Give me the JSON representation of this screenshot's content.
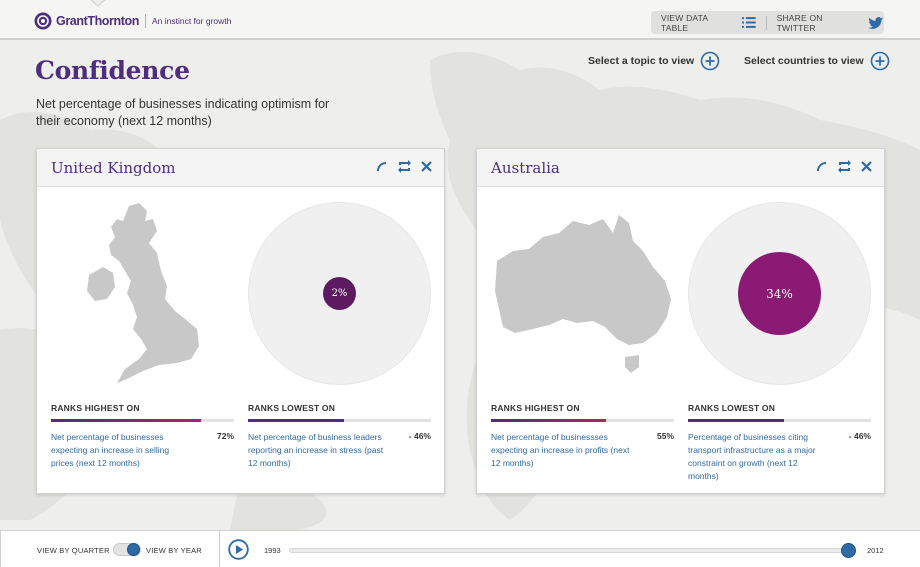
{
  "header": {
    "logo_name": "GrantThornton",
    "logo_tagline": "An instinct for growth",
    "view_data_table": "VIEW DATA TABLE",
    "share_twitter": "SHARE ON TWITTER"
  },
  "page": {
    "title": "Confidence",
    "subtitle": "Net percentage of businesses indicating optimism for their economy (next 12 months)",
    "select_topic": "Select a topic to view",
    "select_countries": "Select countries to view"
  },
  "cards": [
    {
      "country": "United Kingdom",
      "value_label": "2%",
      "value": 2,
      "highest": {
        "label": "RANKS HIGHEST ON",
        "description": "Net percentage of businesses expecting an increase in selling prices (next 12 months)",
        "value_label": "72%",
        "value": 72
      },
      "lowest": {
        "label": "RANKS LOWEST ON",
        "description": "Net percentage of business leaders reporting an increase in stress (past 12 months)",
        "value_label": "- 46%",
        "value": -46
      }
    },
    {
      "country": "Australia",
      "value_label": "34%",
      "value": 34,
      "highest": {
        "label": "RANKS HIGHEST ON",
        "description": "Net percentage of businessses expecting an increase in profits (next 12 months)",
        "value_label": "55%",
        "value": 55
      },
      "lowest": {
        "label": "RANKS LOWEST ON",
        "description": "Percentage of businesses citing transport infrastructure as a major constraint on growth (next 12 months)",
        "value_label": "- 46%",
        "value": -46
      }
    }
  ],
  "footer": {
    "view_by_quarter": "VIEW BY QUARTER",
    "view_by_year": "VIEW BY YEAR",
    "view_mode": "year",
    "year_start": "1993",
    "year_end": "2012",
    "timeline_progress": 0.99
  },
  "colors": {
    "brand": "#4f2d7f",
    "link": "#2f6aa6",
    "bubble": "#8b1a74"
  },
  "icons": {
    "share": "phone-icon",
    "swap": "swap-icon",
    "close": "close-icon",
    "add": "plus-circle-icon",
    "list": "list-icon",
    "twitter": "twitter-bird-icon",
    "play": "play-icon"
  }
}
